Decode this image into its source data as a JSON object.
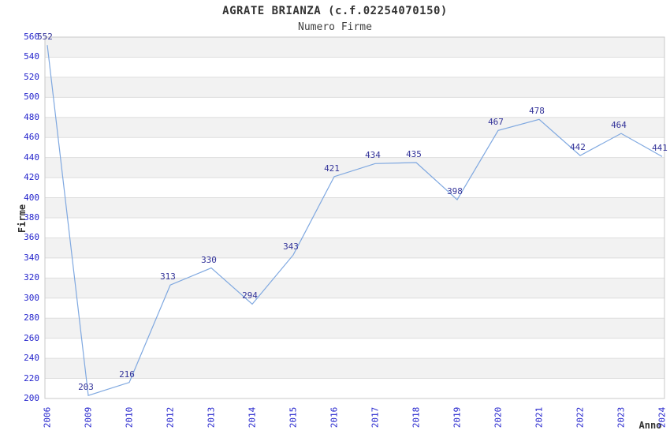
{
  "page": {
    "background": "#ffffff"
  },
  "chart_data": {
    "type": "line",
    "title": "AGRATE BRIANZA (c.f.02254070150)",
    "subtitle": "Numero Firme",
    "xlabel": "Anno",
    "ylabel": "Firme",
    "categories": [
      "2006",
      "2009",
      "2010",
      "2012",
      "2013",
      "2014",
      "2015",
      "2016",
      "2017",
      "2018",
      "2019",
      "2020",
      "2021",
      "2022",
      "2023",
      "2024"
    ],
    "series": [
      {
        "name": "Firme",
        "values": [
          552,
          203,
          216,
          313,
          330,
          294,
          343,
          421,
          434,
          435,
          398,
          467,
          478,
          442,
          464,
          441
        ]
      }
    ],
    "point_labels": [
      "552",
      "203",
      "216",
      "313",
      "330",
      "294",
      "343",
      "421",
      "434",
      "435",
      "398",
      "467",
      "478",
      "442",
      "464",
      "441"
    ],
    "ylim": [
      200,
      560
    ],
    "ytick_step": 20,
    "yticks": [
      200,
      220,
      240,
      260,
      280,
      300,
      320,
      340,
      360,
      380,
      400,
      420,
      440,
      460,
      480,
      500,
      520,
      540,
      560
    ],
    "grid": "horizontal-bands",
    "legend": "none",
    "markers": "none",
    "x_tick_rotation_deg": 90,
    "colors": {
      "line": "#7fa8e0",
      "axis_tick_label": "#2222cc",
      "point_label": "#333399",
      "band_fill": "#f2f2f2",
      "gridline": "#dddddd",
      "plot_border": "#c9c9c9",
      "title_text": "#333333"
    }
  }
}
